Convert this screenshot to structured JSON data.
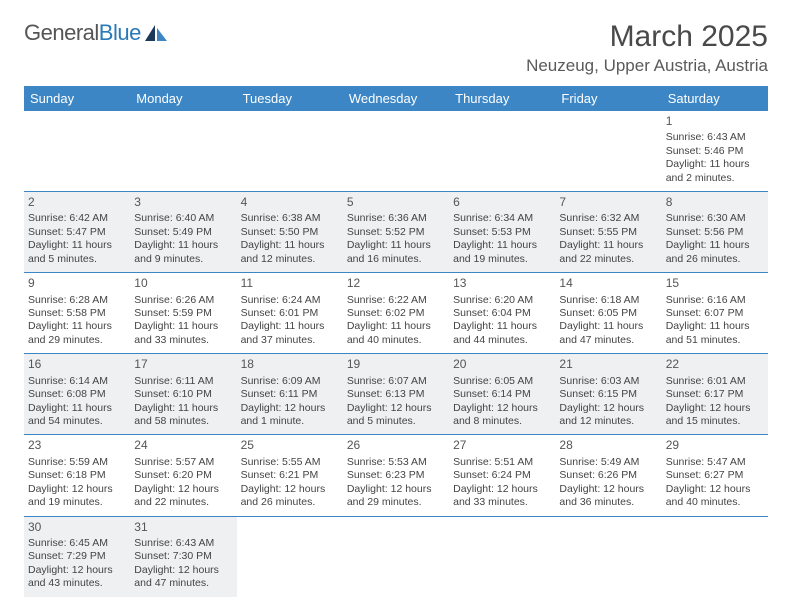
{
  "logo": {
    "text_a": "General",
    "text_b": "Blue"
  },
  "title": "March 2025",
  "location": "Neuzeug, Upper Austria, Austria",
  "colors": {
    "header_bg": "#3c86c6",
    "header_text": "#ffffff",
    "cell_border": "#3c86c6",
    "shaded_bg": "#eef0f2",
    "text": "#444444",
    "title_color": "#494949"
  },
  "weekdays": [
    "Sunday",
    "Monday",
    "Tuesday",
    "Wednesday",
    "Thursday",
    "Friday",
    "Saturday"
  ],
  "weeks": [
    [
      {
        "day": "",
        "shaded": false,
        "lines": []
      },
      {
        "day": "",
        "shaded": false,
        "lines": []
      },
      {
        "day": "",
        "shaded": false,
        "lines": []
      },
      {
        "day": "",
        "shaded": false,
        "lines": []
      },
      {
        "day": "",
        "shaded": false,
        "lines": []
      },
      {
        "day": "",
        "shaded": false,
        "lines": []
      },
      {
        "day": "1",
        "shaded": false,
        "lines": [
          "Sunrise: 6:43 AM",
          "Sunset: 5:46 PM",
          "Daylight: 11 hours",
          "and 2 minutes."
        ]
      }
    ],
    [
      {
        "day": "2",
        "shaded": true,
        "lines": [
          "Sunrise: 6:42 AM",
          "Sunset: 5:47 PM",
          "Daylight: 11 hours",
          "and 5 minutes."
        ]
      },
      {
        "day": "3",
        "shaded": true,
        "lines": [
          "Sunrise: 6:40 AM",
          "Sunset: 5:49 PM",
          "Daylight: 11 hours",
          "and 9 minutes."
        ]
      },
      {
        "day": "4",
        "shaded": true,
        "lines": [
          "Sunrise: 6:38 AM",
          "Sunset: 5:50 PM",
          "Daylight: 11 hours",
          "and 12 minutes."
        ]
      },
      {
        "day": "5",
        "shaded": true,
        "lines": [
          "Sunrise: 6:36 AM",
          "Sunset: 5:52 PM",
          "Daylight: 11 hours",
          "and 16 minutes."
        ]
      },
      {
        "day": "6",
        "shaded": true,
        "lines": [
          "Sunrise: 6:34 AM",
          "Sunset: 5:53 PM",
          "Daylight: 11 hours",
          "and 19 minutes."
        ]
      },
      {
        "day": "7",
        "shaded": true,
        "lines": [
          "Sunrise: 6:32 AM",
          "Sunset: 5:55 PM",
          "Daylight: 11 hours",
          "and 22 minutes."
        ]
      },
      {
        "day": "8",
        "shaded": true,
        "lines": [
          "Sunrise: 6:30 AM",
          "Sunset: 5:56 PM",
          "Daylight: 11 hours",
          "and 26 minutes."
        ]
      }
    ],
    [
      {
        "day": "9",
        "shaded": false,
        "lines": [
          "Sunrise: 6:28 AM",
          "Sunset: 5:58 PM",
          "Daylight: 11 hours",
          "and 29 minutes."
        ]
      },
      {
        "day": "10",
        "shaded": false,
        "lines": [
          "Sunrise: 6:26 AM",
          "Sunset: 5:59 PM",
          "Daylight: 11 hours",
          "and 33 minutes."
        ]
      },
      {
        "day": "11",
        "shaded": false,
        "lines": [
          "Sunrise: 6:24 AM",
          "Sunset: 6:01 PM",
          "Daylight: 11 hours",
          "and 37 minutes."
        ]
      },
      {
        "day": "12",
        "shaded": false,
        "lines": [
          "Sunrise: 6:22 AM",
          "Sunset: 6:02 PM",
          "Daylight: 11 hours",
          "and 40 minutes."
        ]
      },
      {
        "day": "13",
        "shaded": false,
        "lines": [
          "Sunrise: 6:20 AM",
          "Sunset: 6:04 PM",
          "Daylight: 11 hours",
          "and 44 minutes."
        ]
      },
      {
        "day": "14",
        "shaded": false,
        "lines": [
          "Sunrise: 6:18 AM",
          "Sunset: 6:05 PM",
          "Daylight: 11 hours",
          "and 47 minutes."
        ]
      },
      {
        "day": "15",
        "shaded": false,
        "lines": [
          "Sunrise: 6:16 AM",
          "Sunset: 6:07 PM",
          "Daylight: 11 hours",
          "and 51 minutes."
        ]
      }
    ],
    [
      {
        "day": "16",
        "shaded": true,
        "lines": [
          "Sunrise: 6:14 AM",
          "Sunset: 6:08 PM",
          "Daylight: 11 hours",
          "and 54 minutes."
        ]
      },
      {
        "day": "17",
        "shaded": true,
        "lines": [
          "Sunrise: 6:11 AM",
          "Sunset: 6:10 PM",
          "Daylight: 11 hours",
          "and 58 minutes."
        ]
      },
      {
        "day": "18",
        "shaded": true,
        "lines": [
          "Sunrise: 6:09 AM",
          "Sunset: 6:11 PM",
          "Daylight: 12 hours",
          "and 1 minute."
        ]
      },
      {
        "day": "19",
        "shaded": true,
        "lines": [
          "Sunrise: 6:07 AM",
          "Sunset: 6:13 PM",
          "Daylight: 12 hours",
          "and 5 minutes."
        ]
      },
      {
        "day": "20",
        "shaded": true,
        "lines": [
          "Sunrise: 6:05 AM",
          "Sunset: 6:14 PM",
          "Daylight: 12 hours",
          "and 8 minutes."
        ]
      },
      {
        "day": "21",
        "shaded": true,
        "lines": [
          "Sunrise: 6:03 AM",
          "Sunset: 6:15 PM",
          "Daylight: 12 hours",
          "and 12 minutes."
        ]
      },
      {
        "day": "22",
        "shaded": true,
        "lines": [
          "Sunrise: 6:01 AM",
          "Sunset: 6:17 PM",
          "Daylight: 12 hours",
          "and 15 minutes."
        ]
      }
    ],
    [
      {
        "day": "23",
        "shaded": false,
        "lines": [
          "Sunrise: 5:59 AM",
          "Sunset: 6:18 PM",
          "Daylight: 12 hours",
          "and 19 minutes."
        ]
      },
      {
        "day": "24",
        "shaded": false,
        "lines": [
          "Sunrise: 5:57 AM",
          "Sunset: 6:20 PM",
          "Daylight: 12 hours",
          "and 22 minutes."
        ]
      },
      {
        "day": "25",
        "shaded": false,
        "lines": [
          "Sunrise: 5:55 AM",
          "Sunset: 6:21 PM",
          "Daylight: 12 hours",
          "and 26 minutes."
        ]
      },
      {
        "day": "26",
        "shaded": false,
        "lines": [
          "Sunrise: 5:53 AM",
          "Sunset: 6:23 PM",
          "Daylight: 12 hours",
          "and 29 minutes."
        ]
      },
      {
        "day": "27",
        "shaded": false,
        "lines": [
          "Sunrise: 5:51 AM",
          "Sunset: 6:24 PM",
          "Daylight: 12 hours",
          "and 33 minutes."
        ]
      },
      {
        "day": "28",
        "shaded": false,
        "lines": [
          "Sunrise: 5:49 AM",
          "Sunset: 6:26 PM",
          "Daylight: 12 hours",
          "and 36 minutes."
        ]
      },
      {
        "day": "29",
        "shaded": false,
        "lines": [
          "Sunrise: 5:47 AM",
          "Sunset: 6:27 PM",
          "Daylight: 12 hours",
          "and 40 minutes."
        ]
      }
    ],
    [
      {
        "day": "30",
        "shaded": true,
        "lines": [
          "Sunrise: 6:45 AM",
          "Sunset: 7:29 PM",
          "Daylight: 12 hours",
          "and 43 minutes."
        ]
      },
      {
        "day": "31",
        "shaded": true,
        "lines": [
          "Sunrise: 6:43 AM",
          "Sunset: 7:30 PM",
          "Daylight: 12 hours",
          "and 47 minutes."
        ]
      },
      {
        "day": "",
        "shaded": false,
        "lines": []
      },
      {
        "day": "",
        "shaded": false,
        "lines": []
      },
      {
        "day": "",
        "shaded": false,
        "lines": []
      },
      {
        "day": "",
        "shaded": false,
        "lines": []
      },
      {
        "day": "",
        "shaded": false,
        "lines": []
      }
    ]
  ]
}
